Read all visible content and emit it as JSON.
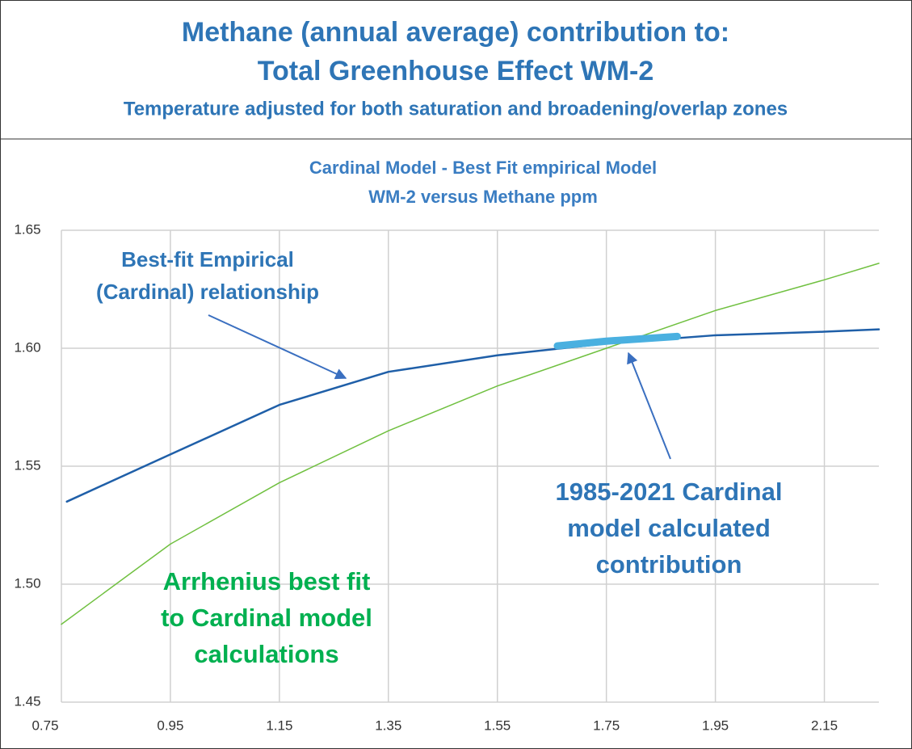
{
  "header": {
    "title": [
      "Methane (annual average) contribution to:",
      "Total Greenhouse Effect WM-2"
    ],
    "subtitle": "Temperature adjusted for both saturation and broadening/overlap zones"
  },
  "chart_data": {
    "type": "line",
    "title": [
      "Cardinal Model - Best Fit empirical Model",
      "WM-2 versus Methane ppm"
    ],
    "xlim": [
      0.75,
      2.25
    ],
    "xticks": [
      0.75,
      0.95,
      1.15,
      1.35,
      1.55,
      1.75,
      1.95,
      2.15
    ],
    "ylim": [
      1.45,
      1.65
    ],
    "yticks": [
      1.45,
      {
        "value": 1.5,
        "label": "1.50"
      },
      1.55,
      {
        "value": 1.6,
        "label": "1.60"
      },
      1.65
    ],
    "grid": true,
    "series": [
      {
        "color": "#1f5fa8",
        "line_width": 2.5,
        "x": [
          0.76,
          0.95,
          1.15,
          1.35,
          1.55,
          1.75,
          1.95,
          2.15,
          2.25
        ],
        "values": [
          1.535,
          1.555,
          1.576,
          1.59,
          1.597,
          1.602,
          1.6055,
          1.607,
          1.608
        ]
      },
      {
        "color": "#70c040",
        "line_width": 1.5,
        "x": [
          0.75,
          0.95,
          1.15,
          1.35,
          1.55,
          1.75,
          1.95,
          2.15,
          2.25
        ],
        "values": [
          1.483,
          1.517,
          1.543,
          1.565,
          1.584,
          1.6,
          1.616,
          1.629,
          1.636
        ]
      },
      {
        "color": "#4ab0e0",
        "line_width": 9,
        "x": [
          1.66,
          1.75,
          1.88
        ],
        "values": [
          1.601,
          1.603,
          1.605
        ]
      }
    ],
    "annotations": [
      {
        "lines": [
          "Best-fit Empirical",
          "(Cardinal) relationship"
        ],
        "color": "#2e75b6"
      },
      {
        "lines": [
          "1985-2021 Cardinal",
          "model calculated",
          "contribution"
        ],
        "color": "#2e75b6"
      },
      {
        "lines": [
          "Arrhenius best fit",
          "to Cardinal model",
          "calculations"
        ],
        "color": "#00b050"
      }
    ]
  }
}
